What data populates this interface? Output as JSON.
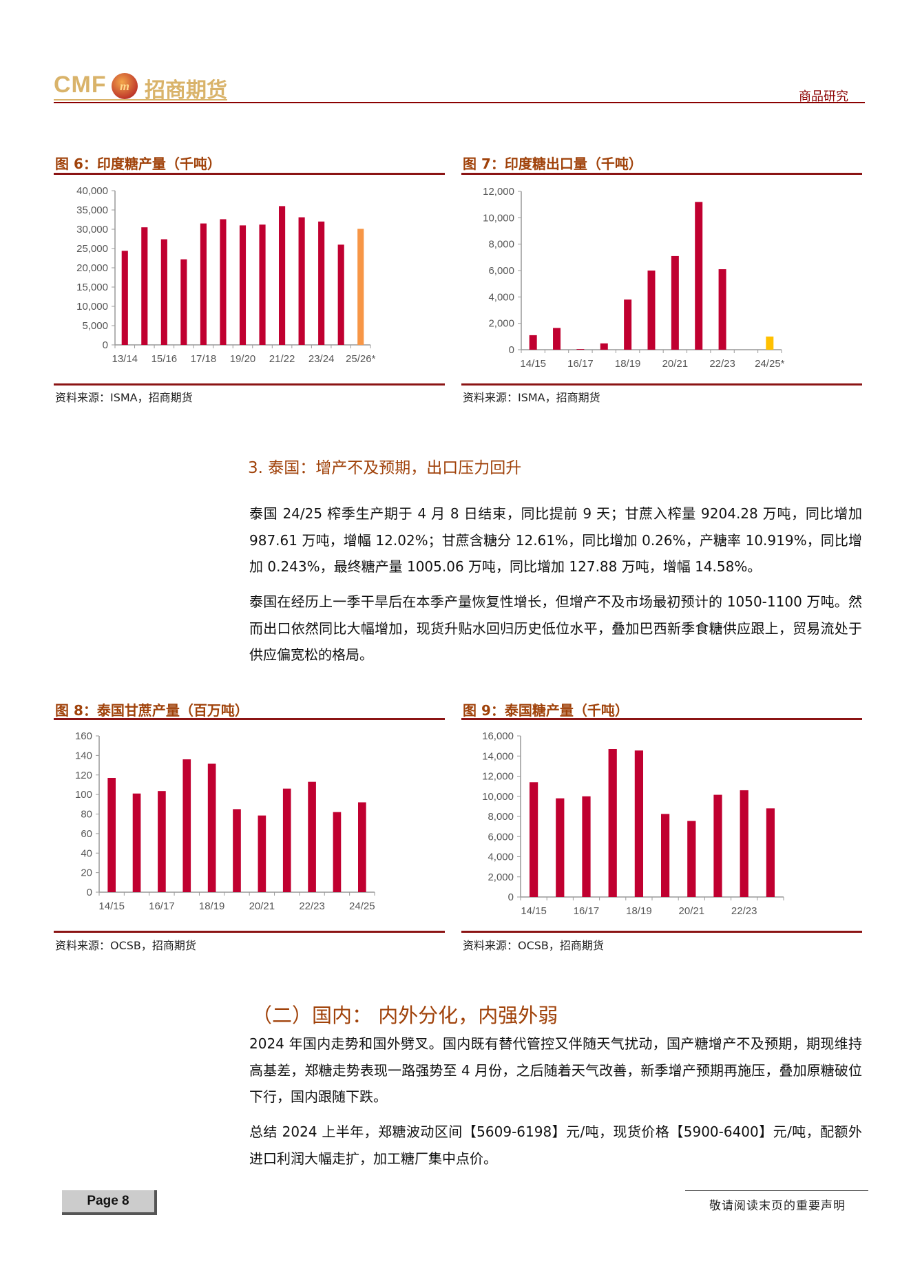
{
  "header": {
    "logo_text": "CMF",
    "logo_cn": "招商期货",
    "section": "商品研究"
  },
  "figures": [
    {
      "title": "图 6：印度糖产量（千吨）",
      "source": "资料来源：ISMA，招商期货"
    },
    {
      "title": "图 7：印度糖出口量（千吨）",
      "source": "资料来源：ISMA，招商期货"
    },
    {
      "title": "图 8：泰国甘蔗产量（百万吨）",
      "source": "资料来源：OCSB，招商期货"
    },
    {
      "title": "图 9：泰国糖产量（千吨）",
      "source": "资料来源：OCSB，招商期货"
    }
  ],
  "chart_data": [
    {
      "type": "bar",
      "title": "图 6：印度糖产量（千吨）",
      "categories": [
        "13/14",
        "14/15",
        "15/16",
        "16/17",
        "17/18",
        "18/19",
        "19/20",
        "20/21",
        "21/22",
        "22/23",
        "23/24",
        "24/25",
        "25/26*"
      ],
      "tick_labels": [
        "13/14",
        "15/16",
        "17/18",
        "19/20",
        "21/22",
        "23/24",
        "25/26*"
      ],
      "values": [
        24400,
        30500,
        27400,
        22200,
        31500,
        32600,
        31000,
        31200,
        36000,
        33100,
        32000,
        26000,
        30100
      ],
      "highlight": {
        "index": 12,
        "color": "#f79646"
      },
      "bar_color": "#c00030",
      "ylim": [
        0,
        40000
      ],
      "yticks": [
        0,
        5000,
        10000,
        15000,
        20000,
        25000,
        30000,
        35000,
        40000
      ],
      "ytick_labels": [
        "0",
        "5,000",
        "10,000",
        "15,000",
        "20,000",
        "25,000",
        "30,000",
        "35,000",
        "40,000"
      ],
      "grid": false
    },
    {
      "type": "bar",
      "title": "图 7：印度糖出口量（千吨）",
      "categories": [
        "14/15",
        "15/16",
        "16/17",
        "17/18",
        "18/19",
        "19/20",
        "20/21",
        "21/22",
        "22/23",
        "23/24",
        "24/25*"
      ],
      "tick_labels": [
        "14/15",
        "16/17",
        "18/19",
        "20/21",
        "22/23",
        "24/25*"
      ],
      "values": [
        1100,
        1650,
        50,
        480,
        3800,
        6000,
        7100,
        11200,
        6100,
        0,
        1000
      ],
      "highlight": {
        "index": 10,
        "color": "#ffc000"
      },
      "bar_color": "#c00030",
      "ylim": [
        0,
        12000
      ],
      "yticks": [
        0,
        2000,
        4000,
        6000,
        8000,
        10000,
        12000
      ],
      "ytick_labels": [
        "0",
        "2,000",
        "4,000",
        "6,000",
        "8,000",
        "10,000",
        "12,000"
      ],
      "grid": false
    },
    {
      "type": "bar",
      "title": "图 8：泰国甘蔗产量（百万吨）",
      "categories": [
        "14/15",
        "15/16",
        "16/17",
        "17/18",
        "18/19",
        "19/20",
        "20/21",
        "21/22",
        "22/23",
        "23/24",
        "24/25"
      ],
      "tick_labels": [
        "14/15",
        "16/17",
        "18/19",
        "20/21",
        "22/23",
        "24/25"
      ],
      "values": [
        117,
        101,
        103.5,
        136,
        131.5,
        85,
        78.5,
        106,
        113,
        82,
        92
      ],
      "bar_color": "#c00030",
      "ylim": [
        0,
        160
      ],
      "yticks": [
        0,
        20,
        40,
        60,
        80,
        100,
        120,
        140,
        160
      ],
      "ytick_labels": [
        "0",
        "20",
        "40",
        "60",
        "80",
        "100",
        "120",
        "140",
        "160"
      ],
      "grid": false
    },
    {
      "type": "bar",
      "title": "图 9：泰国糖产量（千吨）",
      "categories": [
        "14/15",
        "15/16",
        "16/17",
        "17/18",
        "18/19",
        "19/20",
        "20/21",
        "21/22",
        "22/23",
        "23/24"
      ],
      "tick_labels": [
        "14/15",
        "16/17",
        "18/19",
        "20/21",
        "22/23"
      ],
      "values": [
        11400,
        9800,
        10000,
        14700,
        14550,
        8250,
        7550,
        10150,
        10600,
        8800
      ],
      "bar_color": "#c00030",
      "ylim": [
        0,
        16000
      ],
      "yticks": [
        0,
        2000,
        4000,
        6000,
        8000,
        10000,
        12000,
        14000,
        16000
      ],
      "ytick_labels": [
        "0",
        "2,000",
        "4,000",
        "6,000",
        "8,000",
        "10,000",
        "12,000",
        "14,000",
        "16,000"
      ],
      "grid": false
    }
  ],
  "section3": {
    "title": "3.   泰国：增产不及预期，出口压力回升",
    "paragraphs": [
      "泰国 24/25 榨季生产期于 4 月 8 日结束，同比提前 9 天；甘蔗入榨量 9204.28 万吨，同比增加 987.61 万吨，增幅 12.02%；甘蔗含糖分 12.61%，同比增加 0.26%，产糖率 10.919%，同比增加 0.243%，最终糖产量 1005.06 万吨，同比增加 127.88 万吨，增幅 14.58%。",
      "泰国在经历上一季干旱后在本季产量恢复性增长，但增产不及市场最初预计的 1050-1100 万吨。然而出口依然同比大幅增加，现货升贴水回归历史低位水平，叠加巴西新季食糖供应跟上，贸易流处于供应偏宽松的格局。"
    ]
  },
  "section_domestic": {
    "title": "（二）国内：  内外分化，内强外弱",
    "paragraphs": [
      "2024 年国内走势和国外劈叉。国内既有替代管控又伴随天气扰动，国产糖增产不及预期，期现维持高基差，郑糖走势表现一路强势至 4 月份，之后随着天气改善，新季增产预期再施压，叠加原糖破位下行，国内跟随下跌。",
      "总结 2024 上半年，郑糖波动区间【5609-6198】元/吨，现货价格【5900-6400】元/吨，配额外进口利润大幅走扩，加工糖厂集中点价。"
    ]
  },
  "footer": {
    "page_label": "Page 8",
    "disclaimer": "敬请阅读末页的重要声明"
  }
}
